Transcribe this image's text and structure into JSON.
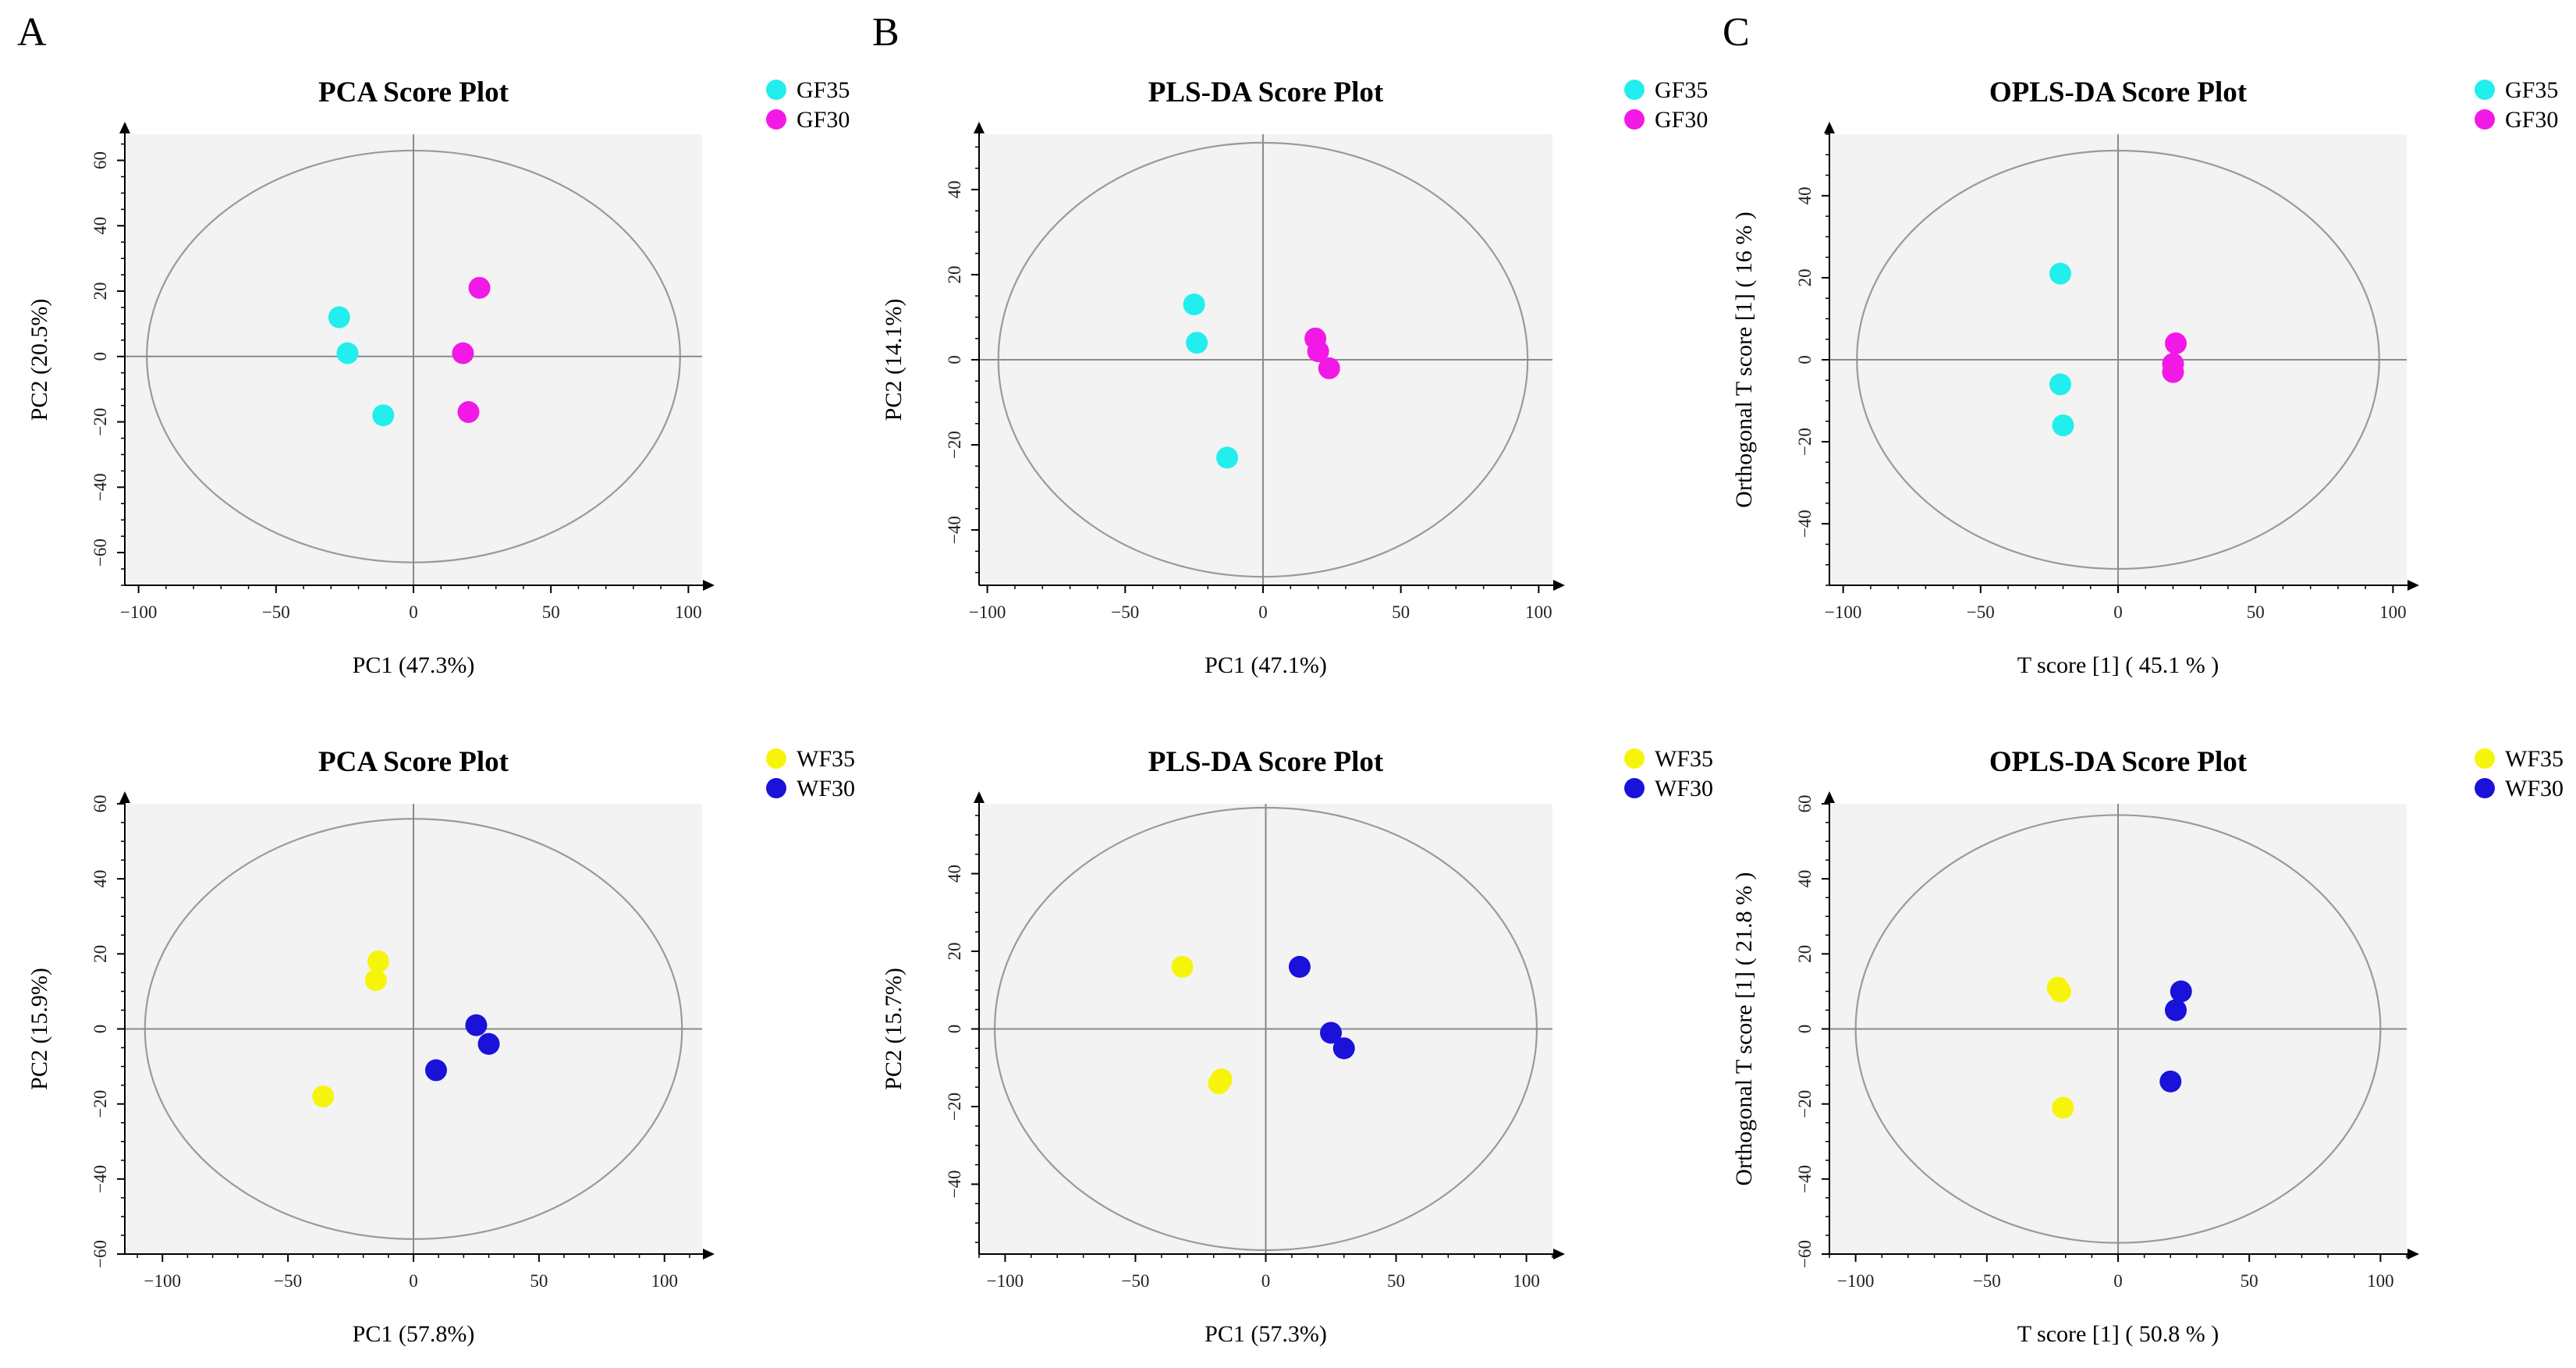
{
  "figure": {
    "panel_letters": [
      "A",
      "B",
      "C"
    ]
  },
  "colors": {
    "GF35": "#22EEEE",
    "GF30": "#F219E6",
    "WF35": "#F7F40C",
    "WF30": "#1A12D8",
    "plot_bg": "#F3F3F3",
    "ellipse": "#9A9A9A"
  },
  "chart_data": [
    {
      "id": "A1",
      "type": "scatter",
      "title": "PCA Score Plot",
      "xlabel": "PC1 (47.3%)",
      "ylabel": "PC2 (20.5%)",
      "xlim": [
        -105,
        105
      ],
      "ylim": [
        -70,
        68
      ],
      "xticks": [
        -100,
        -50,
        0,
        50,
        100
      ],
      "yticks": [
        -60,
        -40,
        -20,
        0,
        20,
        40,
        60
      ],
      "ellipse": {
        "rx": 97,
        "ry": 63
      },
      "legend_position": "top-right",
      "series": [
        {
          "name": "GF35",
          "color": "#22EEEE",
          "points": [
            [
              -27,
              12
            ],
            [
              -24,
              1
            ],
            [
              -11,
              -18
            ]
          ]
        },
        {
          "name": "GF30",
          "color": "#F219E6",
          "points": [
            [
              24,
              21
            ],
            [
              18,
              1
            ],
            [
              20,
              -17
            ]
          ]
        }
      ]
    },
    {
      "id": "B1",
      "type": "scatter",
      "title": "PLS-DA Score Plot",
      "xlabel": "PC1 (47.1%)",
      "ylabel": "PC2 (14.1%)",
      "xlim": [
        -103,
        105
      ],
      "ylim": [
        -53,
        53
      ],
      "xticks": [
        -100,
        -50,
        0,
        50,
        100
      ],
      "yticks": [
        -40,
        -20,
        0,
        20,
        40
      ],
      "ellipse": {
        "rx": 96,
        "ry": 51
      },
      "legend_position": "top-right",
      "series": [
        {
          "name": "GF35",
          "color": "#22EEEE",
          "points": [
            [
              -25,
              13
            ],
            [
              -24,
              4
            ],
            [
              -13,
              -23
            ]
          ]
        },
        {
          "name": "GF30",
          "color": "#F219E6",
          "points": [
            [
              19,
              5
            ],
            [
              20,
              2
            ],
            [
              24,
              -2
            ]
          ]
        }
      ]
    },
    {
      "id": "C1",
      "type": "scatter",
      "title": "OPLS-DA Score Plot",
      "xlabel": "T score [1] ( 45.1 % )",
      "ylabel": "Orthogonal T score [1] ( 16 % )",
      "xlim": [
        -105,
        105
      ],
      "ylim": [
        -55,
        55
      ],
      "xticks": [
        -100,
        -50,
        0,
        50,
        100
      ],
      "yticks": [
        -40,
        -20,
        0,
        20,
        40
      ],
      "ellipse": {
        "rx": 95,
        "ry": 51
      },
      "legend_position": "top-right",
      "series": [
        {
          "name": "GF35",
          "color": "#22EEEE",
          "points": [
            [
              -21,
              21
            ],
            [
              -21,
              -6
            ],
            [
              -20,
              -16
            ]
          ]
        },
        {
          "name": "GF30",
          "color": "#F219E6",
          "points": [
            [
              21,
              4
            ],
            [
              20,
              -1
            ],
            [
              20,
              -3
            ]
          ]
        }
      ]
    },
    {
      "id": "A2",
      "type": "scatter",
      "title": "PCA Score Plot",
      "xlabel": "PC1 (57.8%)",
      "ylabel": "PC2 (15.9%)",
      "xlim": [
        -115,
        115
      ],
      "ylim": [
        -60,
        60
      ],
      "xticks": [
        -100,
        -50,
        0,
        50,
        100
      ],
      "yticks": [
        -60,
        -40,
        -20,
        0,
        20,
        40,
        60
      ],
      "ellipse": {
        "rx": 107,
        "ry": 56
      },
      "legend_position": "top-right",
      "series": [
        {
          "name": "WF35",
          "color": "#F7F40C",
          "points": [
            [
              -14,
              18
            ],
            [
              -15,
              13
            ],
            [
              -36,
              -18
            ]
          ]
        },
        {
          "name": "WF30",
          "color": "#1A12D8",
          "points": [
            [
              25,
              1
            ],
            [
              30,
              -4
            ],
            [
              9,
              -11
            ]
          ]
        }
      ]
    },
    {
      "id": "B2",
      "type": "scatter",
      "title": "PLS-DA Score Plot",
      "xlabel": "PC1 (57.3%)",
      "ylabel": "PC2 (15.7%)",
      "xlim": [
        -110,
        110
      ],
      "ylim": [
        -58,
        58
      ],
      "xticks": [
        -100,
        -50,
        0,
        50,
        100
      ],
      "yticks": [
        -40,
        -20,
        0,
        20,
        40
      ],
      "ellipse": {
        "rx": 104,
        "ry": 57
      },
      "legend_position": "top-right",
      "series": [
        {
          "name": "WF35",
          "color": "#F7F40C",
          "points": [
            [
              -32,
              16
            ],
            [
              -17,
              -13
            ],
            [
              -18,
              -14
            ]
          ]
        },
        {
          "name": "WF30",
          "color": "#1A12D8",
          "points": [
            [
              13,
              16
            ],
            [
              25,
              -1
            ],
            [
              30,
              -5
            ]
          ]
        }
      ]
    },
    {
      "id": "C2",
      "type": "scatter",
      "title": "OPLS-DA Score Plot",
      "xlabel": "T score [1] ( 50.8 % )",
      "ylabel": "Orthogonal T score [1] ( 21.8 % )",
      "xlim": [
        -110,
        110
      ],
      "ylim": [
        -60,
        60
      ],
      "xticks": [
        -100,
        -50,
        0,
        50,
        100
      ],
      "yticks": [
        -60,
        -40,
        -20,
        0,
        20,
        40,
        60
      ],
      "ellipse": {
        "rx": 100,
        "ry": 57
      },
      "legend_position": "top-right",
      "series": [
        {
          "name": "WF35",
          "color": "#F7F40C",
          "points": [
            [
              -23,
              11
            ],
            [
              -22,
              10
            ],
            [
              -21,
              -21
            ]
          ]
        },
        {
          "name": "WF30",
          "color": "#1A12D8",
          "points": [
            [
              24,
              10
            ],
            [
              22,
              5
            ],
            [
              20,
              -14
            ]
          ]
        }
      ]
    }
  ]
}
